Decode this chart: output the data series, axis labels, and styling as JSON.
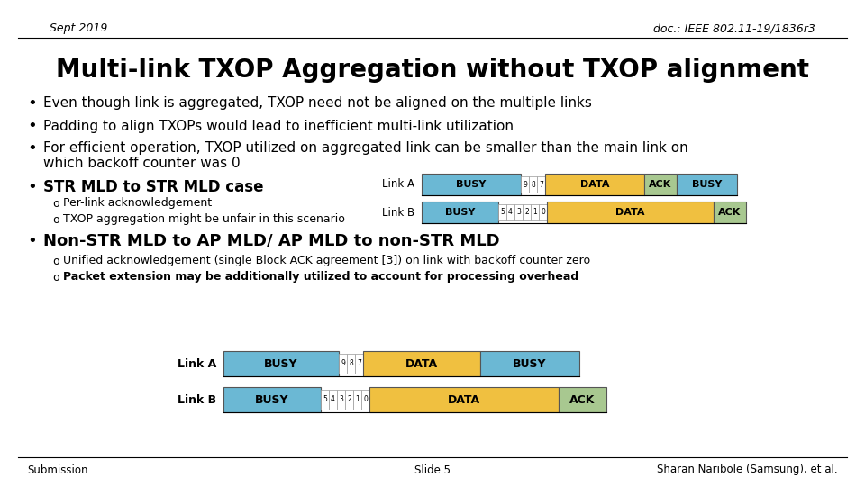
{
  "title": "Multi-link TXOP Aggregation without TXOP alignment",
  "header_left": "Sept 2019",
  "header_right": "doc.: IEEE 802.11-19/1836r3",
  "footer_left": "Submission",
  "footer_center": "Slide 5",
  "footer_right": "Sharan Naribole (Samsung), et al.",
  "color_busy": "#6BB8D4",
  "color_data": "#F0C040",
  "color_ack": "#A8C890",
  "color_bg": "#FFFFFF",
  "color_border": "#555555",
  "color_backoff_bg": "#FFFFFF",
  "color_backoff_border": "#999999"
}
